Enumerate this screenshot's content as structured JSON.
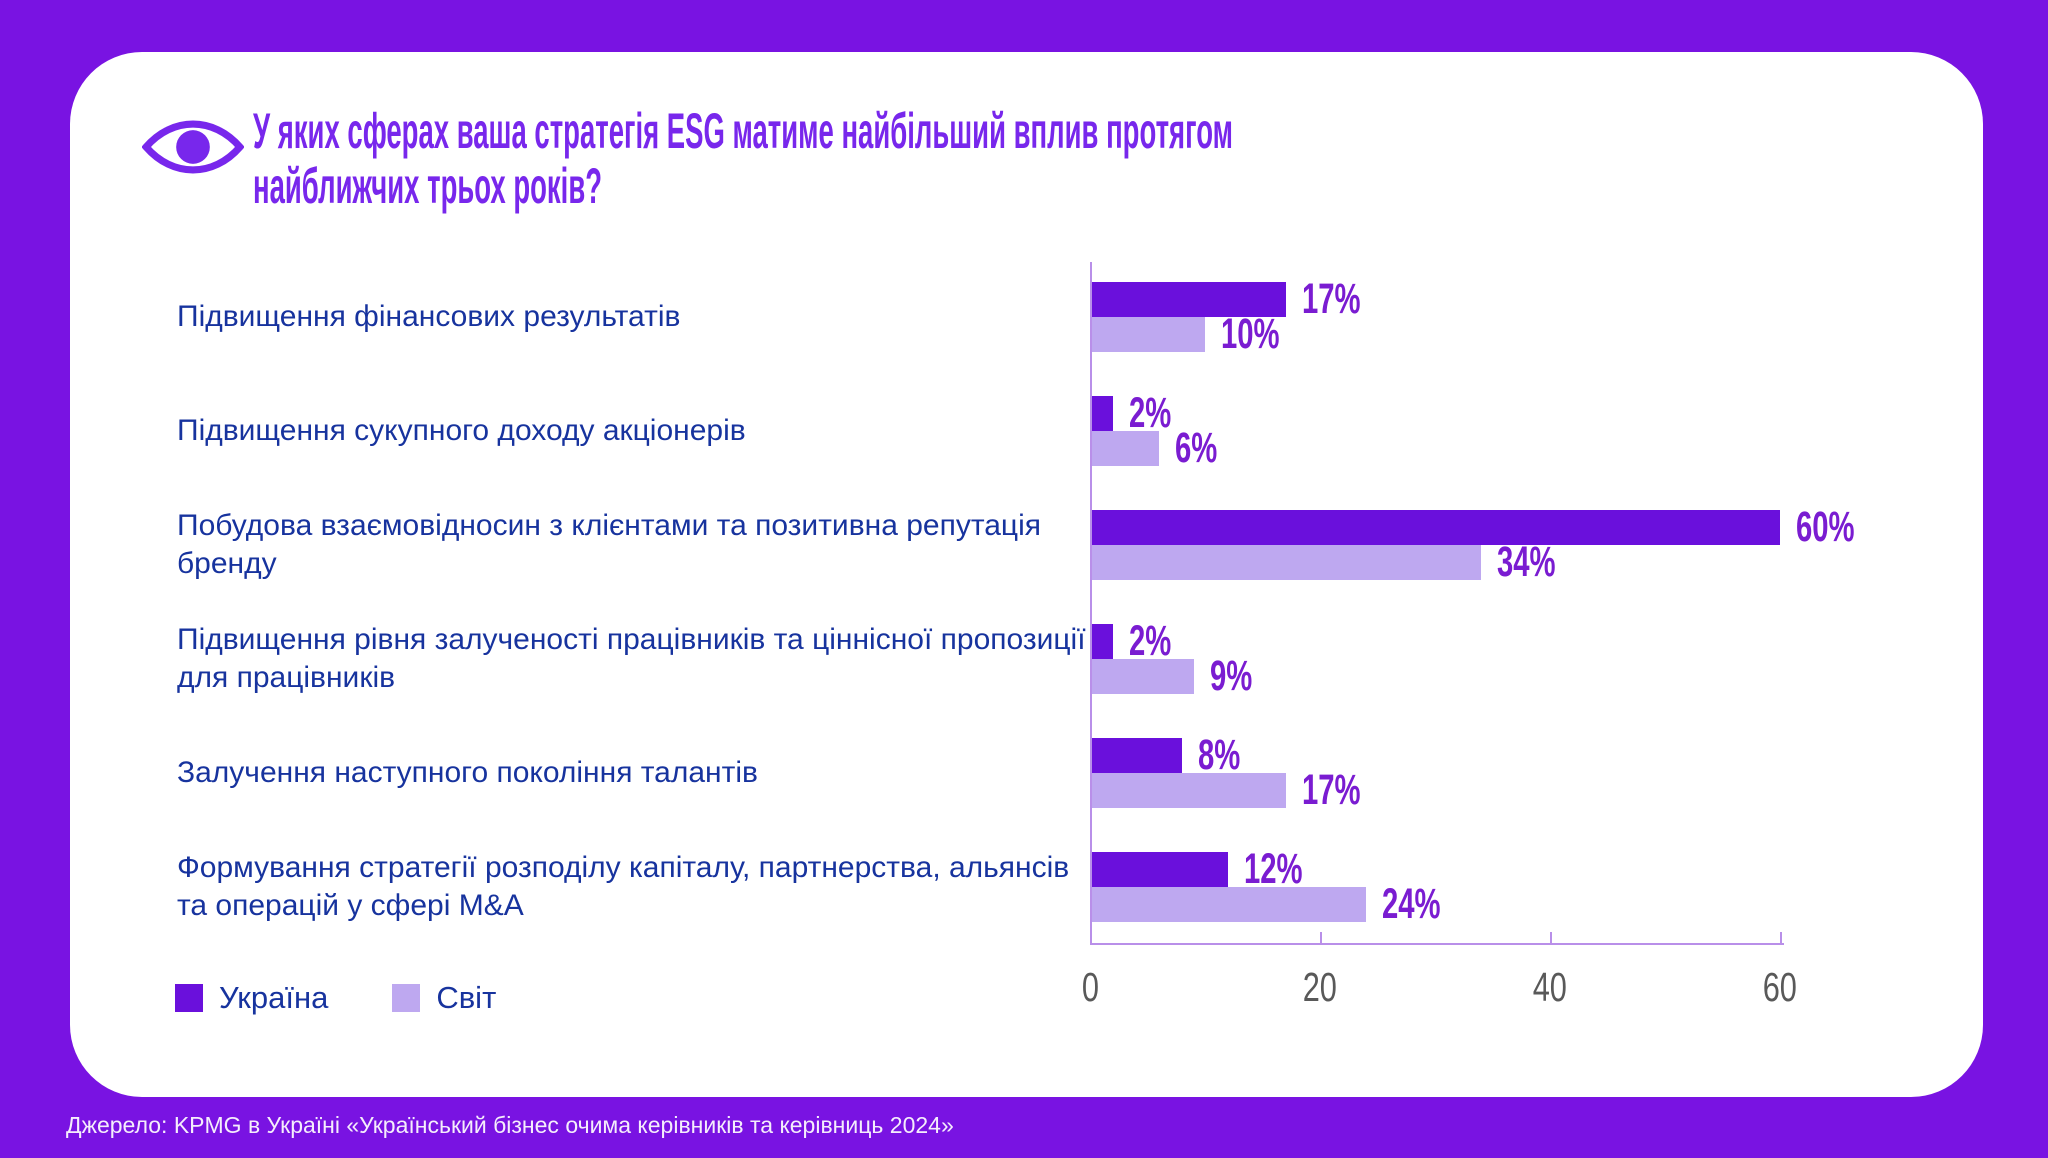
{
  "page": {
    "background_color": "#7913E2",
    "card_color": "#FFFFFF"
  },
  "header": {
    "eye_icon": "eye-icon",
    "title": "У яких сферах ваша стратегія ESG матиме найбільший вплив протягом найближчих трьох років?",
    "title_color": "#7827EC"
  },
  "chart_data": {
    "type": "bar",
    "orientation": "horizontal",
    "title": "У яких сферах ваша стратегія ESG матиме найбільший вплив протягом найближчих трьох років?",
    "categories": [
      "Підвищення фінансових результатів",
      "Підвищення сукупного доходу акціонерів",
      "Побудова взаємовідносин з клієнтами та позитивна репутація бренду",
      "Підвищення рівня залученості працівників та ціннісної пропозиції для працівників",
      "Залучення наступного покоління талантів",
      "Формування стратегії розподілу капіталу, партнерства, альянсів та операцій у сфері M&A"
    ],
    "series": [
      {
        "name": "Україна",
        "color": "#6A10DC",
        "values": [
          17,
          2,
          60,
          2,
          8,
          12
        ]
      },
      {
        "name": "Світ",
        "color": "#BEA8F0",
        "values": [
          10,
          6,
          34,
          9,
          17,
          24
        ]
      }
    ],
    "value_suffix": "%",
    "xlim": [
      0,
      60
    ],
    "x_ticks": [
      0,
      20,
      40,
      60
    ],
    "grid": false,
    "legend_position": "bottom-left",
    "axis_color": "#B98FE9",
    "tick_label_color": "#595959",
    "value_label_color": "#7A1CD1",
    "category_label_color": "#17339E"
  },
  "footer": {
    "source": "Джерело: KPMG в Україні «Український бізнес очима керівників та керівниць 2024»"
  }
}
